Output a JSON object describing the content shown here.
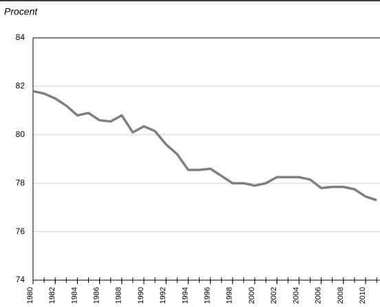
{
  "chart_data": {
    "type": "line",
    "y_label": "Procent",
    "x": [
      1980,
      1981,
      1982,
      1983,
      1984,
      1985,
      1986,
      1987,
      1988,
      1989,
      1990,
      1991,
      1992,
      1993,
      1994,
      1995,
      1996,
      1997,
      1998,
      1999,
      2000,
      2001,
      2002,
      2003,
      2004,
      2005,
      2006,
      2007,
      2008,
      2009,
      2010,
      2011
    ],
    "series": [
      {
        "color": "#7f7f7f",
        "values": [
          81.8,
          81.7,
          81.5,
          81.2,
          80.8,
          80.9,
          80.6,
          80.55,
          80.8,
          80.1,
          80.35,
          80.15,
          79.6,
          79.2,
          78.55,
          78.55,
          78.6,
          78.3,
          78.0,
          78.0,
          77.9,
          78.0,
          78.25,
          78.25,
          78.25,
          78.15,
          77.8,
          77.85,
          77.85,
          77.75,
          77.45,
          77.3
        ]
      }
    ],
    "xlim": [
      1980,
      2011.3
    ],
    "xticks": [
      1980,
      1982,
      1984,
      1986,
      1988,
      1990,
      1992,
      1994,
      1996,
      1998,
      2000,
      2002,
      2004,
      2006,
      2008,
      2010
    ],
    "ylim": [
      74,
      84
    ],
    "yticks": [
      74,
      76,
      78,
      80,
      82,
      84
    ],
    "grid": true
  }
}
